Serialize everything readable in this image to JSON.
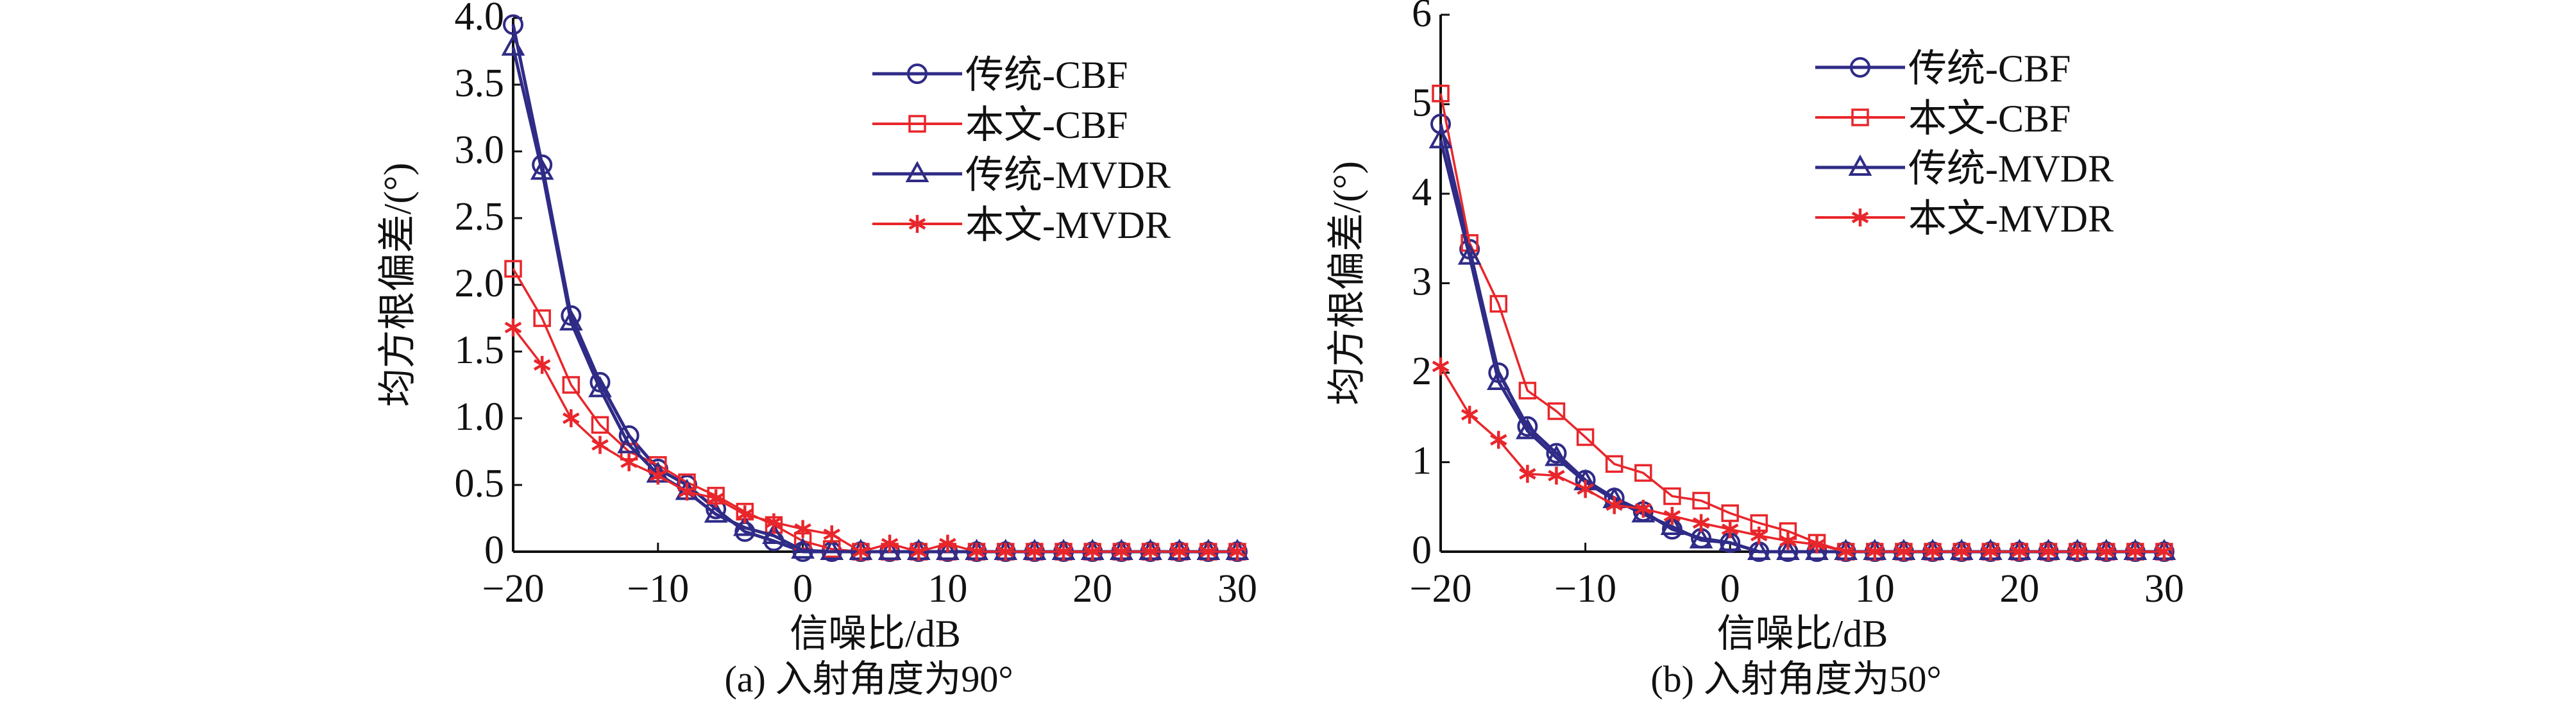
{
  "colors": {
    "traditional": "#2f2b86",
    "proposed": "#e8262b",
    "axis": "#111111"
  },
  "chart_data": [
    {
      "type": "line",
      "caption": "(a) 入射角度为90°",
      "xlabel": "信噪比/dB",
      "ylabel": "均方根偏差/(°)",
      "xlim": [
        -20,
        30
      ],
      "ylim": [
        0,
        4
      ],
      "xticks": [
        -20,
        -10,
        0,
        10,
        20,
        30
      ],
      "xtick_labels": [
        "−20",
        "−10",
        "0",
        "10",
        "20",
        "30"
      ],
      "yticks": [
        0,
        0.5,
        1,
        1.5,
        2,
        2.5,
        3,
        3.5,
        4
      ],
      "ytick_labels": [
        "0",
        "0.5",
        "1.0",
        "1.5",
        "2.0",
        "2.5",
        "3.0",
        "3.5",
        "4.0"
      ],
      "legend_position": "top-right",
      "x": [
        -20,
        -18,
        -16,
        -14,
        -12,
        -10,
        -8,
        -6,
        -4,
        -2,
        0,
        2,
        4,
        6,
        8,
        10,
        12,
        14,
        16,
        18,
        20,
        22,
        24,
        26,
        28,
        30
      ],
      "series": [
        {
          "name": "传统-CBF",
          "color": "traditional",
          "marker": "circle",
          "values": [
            3.95,
            2.9,
            1.77,
            1.27,
            0.87,
            0.62,
            0.5,
            0.32,
            0.15,
            0.08,
            0,
            0,
            0,
            0,
            0,
            0,
            0,
            0,
            0,
            0,
            0,
            0,
            0,
            0,
            0,
            0
          ]
        },
        {
          "name": "本文-CBF",
          "color": "proposed",
          "marker": "square",
          "values": [
            2.12,
            1.75,
            1.25,
            0.95,
            0.75,
            0.65,
            0.52,
            0.42,
            0.3,
            0.2,
            0.08,
            0.02,
            0,
            0,
            0,
            0,
            0,
            0,
            0,
            0,
            0,
            0,
            0,
            0,
            0,
            0
          ]
        },
        {
          "name": "传统-MVDR",
          "color": "traditional",
          "marker": "triangle",
          "values": [
            3.78,
            2.85,
            1.72,
            1.22,
            0.8,
            0.58,
            0.45,
            0.28,
            0.18,
            0.12,
            0.01,
            0,
            0,
            0,
            0,
            0,
            0,
            0,
            0,
            0,
            0,
            0,
            0,
            0,
            0,
            0
          ]
        },
        {
          "name": "本文-MVDR",
          "color": "proposed",
          "marker": "star",
          "values": [
            1.68,
            1.4,
            1.0,
            0.8,
            0.67,
            0.57,
            0.45,
            0.4,
            0.28,
            0.22,
            0.17,
            0.13,
            0,
            0.06,
            0,
            0.06,
            0,
            0,
            0,
            0,
            0,
            0,
            0,
            0,
            0,
            0
          ]
        }
      ]
    },
    {
      "type": "line",
      "caption": "(b) 入射角度为50°",
      "xlabel": "信噪比/dB",
      "ylabel": "均方根偏差/(°)",
      "xlim": [
        -20,
        30
      ],
      "ylim": [
        0,
        6
      ],
      "xticks": [
        -20,
        -10,
        0,
        10,
        20,
        30
      ],
      "xtick_labels": [
        "−20",
        "−10",
        "0",
        "10",
        "20",
        "30"
      ],
      "yticks": [
        0,
        1,
        2,
        3,
        4,
        5,
        6
      ],
      "ytick_labels": [
        "0",
        "1",
        "2",
        "3",
        "4",
        "5",
        "6"
      ],
      "legend_position": "top-right",
      "x": [
        -20,
        -18,
        -16,
        -14,
        -12,
        -10,
        -8,
        -6,
        -4,
        -2,
        0,
        2,
        4,
        6,
        8,
        10,
        12,
        14,
        16,
        18,
        20,
        22,
        24,
        26,
        28,
        30
      ],
      "series": [
        {
          "name": "传统-CBF",
          "color": "traditional",
          "marker": "circle",
          "values": [
            4.78,
            3.38,
            2.0,
            1.4,
            1.1,
            0.8,
            0.6,
            0.45,
            0.25,
            0.15,
            0.1,
            0,
            0,
            0,
            0,
            0,
            0,
            0,
            0,
            0,
            0,
            0,
            0,
            0,
            0,
            0
          ]
        },
        {
          "name": "本文-CBF",
          "color": "proposed",
          "marker": "square",
          "values": [
            5.12,
            3.45,
            2.77,
            1.8,
            1.57,
            1.28,
            0.98,
            0.88,
            0.62,
            0.57,
            0.43,
            0.32,
            0.23,
            0.1,
            0,
            0,
            0,
            0,
            0,
            0,
            0,
            0,
            0,
            0,
            0,
            0
          ]
        },
        {
          "name": "传统-MVDR",
          "color": "traditional",
          "marker": "triangle",
          "values": [
            4.6,
            3.3,
            1.9,
            1.35,
            1.05,
            0.78,
            0.58,
            0.42,
            0.28,
            0.13,
            0.1,
            0,
            0,
            0,
            0,
            0,
            0,
            0,
            0,
            0,
            0,
            0,
            0,
            0,
            0,
            0
          ]
        },
        {
          "name": "本文-MVDR",
          "color": "proposed",
          "marker": "star",
          "values": [
            2.07,
            1.53,
            1.25,
            0.87,
            0.85,
            0.7,
            0.52,
            0.48,
            0.4,
            0.32,
            0.25,
            0.18,
            0.12,
            0.08,
            0,
            0,
            0,
            0,
            0,
            0,
            0,
            0,
            0,
            0,
            0,
            0
          ]
        }
      ]
    }
  ]
}
